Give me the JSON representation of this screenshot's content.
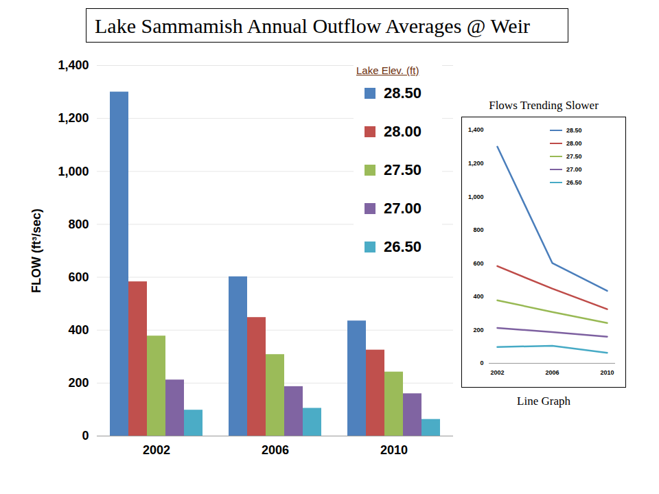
{
  "chart_data": [
    {
      "type": "bar",
      "title": "Lake Sammamish Annual Outflow Averages @ Weir",
      "ylabel": "FLOW (ft³/sec)",
      "categories": [
        "2002",
        "2006",
        "2010"
      ],
      "series": [
        {
          "name": "28.50",
          "color": "#4f81bd",
          "values": [
            1300,
            602,
            435
          ]
        },
        {
          "name": "28.00",
          "color": "#c0504d",
          "values": [
            583,
            448,
            325
          ]
        },
        {
          "name": "27.50",
          "color": "#9bbb59",
          "values": [
            378,
            308,
            242
          ]
        },
        {
          "name": "27.00",
          "color": "#8064a2",
          "values": [
            212,
            187,
            160
          ]
        },
        {
          "name": "26.50",
          "color": "#4bacc6",
          "values": [
            98,
            105,
            63
          ]
        }
      ],
      "ylim": [
        0,
        1400
      ],
      "yticks": [
        0,
        200,
        400,
        600,
        800,
        1000,
        1200,
        1400
      ],
      "grid": true,
      "legend": "top-right",
      "legend_title": "Lake Elev. (ft)"
    },
    {
      "type": "line",
      "title": "Flows Trending Slower",
      "xlabel": "Line Graph",
      "categories": [
        "2002",
        "2006",
        "2010"
      ],
      "series": [
        {
          "name": "28.50",
          "color": "#4a7ebb",
          "values": [
            1300,
            602,
            435
          ]
        },
        {
          "name": "28.00",
          "color": "#be4b48",
          "values": [
            583,
            448,
            325
          ]
        },
        {
          "name": "27.50",
          "color": "#98b954",
          "values": [
            378,
            308,
            242
          ]
        },
        {
          "name": "27.00",
          "color": "#7d60a0",
          "values": [
            212,
            187,
            160
          ]
        },
        {
          "name": "26.50",
          "color": "#46aac5",
          "values": [
            98,
            105,
            63
          ]
        }
      ],
      "ylim": [
        0,
        1400
      ],
      "yticks": [
        0,
        200,
        400,
        600,
        800,
        1000,
        1200,
        1400
      ],
      "grid": false,
      "legend": "top-right"
    }
  ]
}
